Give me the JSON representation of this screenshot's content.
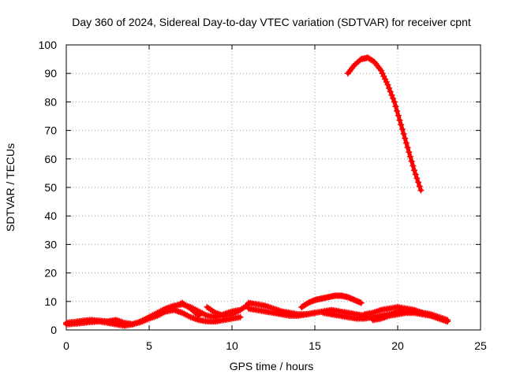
{
  "chart_data": {
    "type": "scatter",
    "title": "Day 360 of 2024, Sidereal Day-to-day VTEC variation (SDTVAR) for receiver cpnt",
    "xlabel": "GPS time / hours",
    "ylabel": "SDTVAR / TECUs",
    "xlim": [
      0,
      25
    ],
    "ylim": [
      0,
      100
    ],
    "xticks": [
      "0",
      "5",
      "10",
      "15",
      "20",
      "25"
    ],
    "yticks": [
      "0",
      "10",
      "20",
      "30",
      "40",
      "50",
      "60",
      "70",
      "80",
      "90",
      "100"
    ],
    "grid": true,
    "marker": "+",
    "color": "#ff0000",
    "series": [
      {
        "x": [
          17.0,
          17.4,
          17.8,
          18.2,
          18.6,
          19.0,
          19.4,
          19.8,
          20.2,
          20.6,
          21.0,
          21.4
        ],
        "y": [
          90,
          93,
          95,
          95.5,
          94,
          91,
          86,
          80,
          72,
          64,
          56,
          49
        ]
      },
      {
        "x": [
          0.0,
          0.5,
          1.0,
          1.5,
          2.0,
          2.5,
          3.0,
          3.5,
          4.0,
          4.5,
          5.0,
          5.5,
          6.0,
          6.5,
          7.0,
          7.5,
          8.0,
          8.5,
          9.0,
          9.5,
          10.0,
          10.5
        ],
        "y": [
          2.0,
          2.2,
          2.5,
          2.8,
          3.0,
          2.5,
          2.0,
          1.5,
          2.0,
          3.0,
          4.5,
          6.0,
          7.5,
          8.5,
          9.0,
          8.0,
          6.5,
          5.0,
          4.5,
          5.5,
          6.5,
          7.0
        ]
      },
      {
        "x": [
          0.0,
          0.5,
          1.0,
          1.5,
          2.0,
          2.5,
          3.0,
          3.5,
          4.0,
          4.5,
          5.0,
          5.5,
          6.0,
          6.5,
          7.0,
          7.5,
          8.0
        ],
        "y": [
          2.5,
          2.8,
          3.2,
          3.5,
          3.2,
          3.0,
          3.5,
          2.5,
          2.0,
          2.8,
          4.0,
          5.0,
          6.5,
          8.0,
          9.5,
          7.5,
          5.0
        ]
      },
      {
        "x": [
          6.0,
          6.5,
          7.0,
          7.5,
          8.0,
          8.5,
          9.0,
          9.5,
          10.0,
          10.5
        ],
        "y": [
          6.5,
          7.0,
          6.0,
          4.5,
          3.5,
          3.0,
          3.0,
          3.5,
          4.0,
          4.5
        ]
      },
      {
        "x": [
          8.5,
          9.0,
          9.5,
          10.0,
          10.5,
          11.0
        ],
        "y": [
          8.0,
          6.0,
          5.0,
          5.5,
          7.0,
          9.0
        ]
      },
      {
        "x": [
          11.0,
          11.5,
          12.0,
          12.5,
          13.0,
          13.5,
          14.0,
          14.5,
          15.0,
          15.5,
          16.0,
          16.5,
          17.0,
          17.5,
          18.0
        ],
        "y": [
          9.5,
          9.0,
          8.5,
          7.5,
          6.5,
          6.0,
          5.5,
          5.5,
          6.0,
          6.5,
          7.0,
          6.5,
          6.0,
          5.5,
          5.0
        ]
      },
      {
        "x": [
          11.0,
          11.5,
          12.0,
          12.5,
          13.0,
          13.5,
          14.0,
          14.5,
          15.0
        ],
        "y": [
          7.5,
          7.0,
          6.5,
          6.0,
          5.5,
          5.0,
          5.0,
          5.5,
          6.0
        ]
      },
      {
        "x": [
          14.2,
          14.6,
          15.0,
          15.4,
          15.8,
          16.2,
          16.6,
          17.0,
          17.4,
          17.8
        ],
        "y": [
          8.0,
          9.5,
          10.5,
          11.0,
          11.5,
          12.0,
          12.0,
          11.5,
          10.5,
          9.5
        ]
      },
      {
        "x": [
          15.5,
          16.0,
          16.5,
          17.0,
          17.5,
          18.0,
          18.5,
          19.0,
          19.5,
          20.0,
          20.5,
          21.0,
          21.5,
          22.0,
          22.5,
          23.0
        ],
        "y": [
          6.0,
          5.5,
          5.0,
          4.5,
          4.0,
          4.0,
          4.5,
          5.0,
          5.5,
          6.5,
          7.0,
          6.5,
          6.0,
          5.0,
          4.0,
          3.0
        ]
      },
      {
        "x": [
          18.0,
          18.5,
          19.0,
          19.5,
          20.0,
          20.5,
          21.0,
          21.5,
          22.0,
          22.5,
          23.0
        ],
        "y": [
          5.5,
          6.0,
          7.0,
          7.5,
          8.0,
          7.5,
          7.0,
          6.0,
          5.5,
          4.5,
          3.5
        ]
      },
      {
        "x": [
          18.5,
          19.0,
          19.5,
          20.0,
          20.5,
          21.0,
          21.5,
          22.0,
          22.5,
          23.0
        ],
        "y": [
          3.5,
          4.0,
          5.0,
          5.5,
          6.0,
          6.0,
          5.5,
          5.0,
          4.0,
          3.0
        ]
      }
    ]
  }
}
